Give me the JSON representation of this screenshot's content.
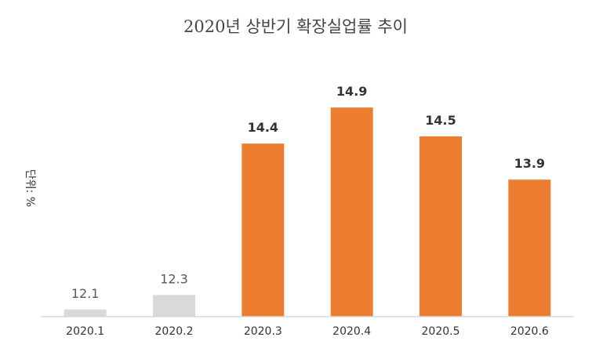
{
  "chart_data": {
    "type": "bar",
    "title": "2020년 상반기 확장실업률 추이",
    "ylabel": "단위: %",
    "xlabel": "",
    "categories": [
      "2020.1",
      "2020.2",
      "2020.3",
      "2020.4",
      "2020.5",
      "2020.6"
    ],
    "values": [
      12.1,
      12.3,
      14.4,
      14.9,
      14.5,
      13.9
    ],
    "ylim": [
      12.0,
      15.0
    ],
    "grid": false,
    "legend": "none",
    "colors": {
      "muted": "#d9d9d9",
      "highlight": "#ed7d31",
      "axis": "#d9d9d9",
      "label_muted": "#595959",
      "label_highlight": "#333333"
    },
    "bar_colors": [
      "muted",
      "muted",
      "highlight",
      "highlight",
      "highlight",
      "highlight"
    ]
  }
}
